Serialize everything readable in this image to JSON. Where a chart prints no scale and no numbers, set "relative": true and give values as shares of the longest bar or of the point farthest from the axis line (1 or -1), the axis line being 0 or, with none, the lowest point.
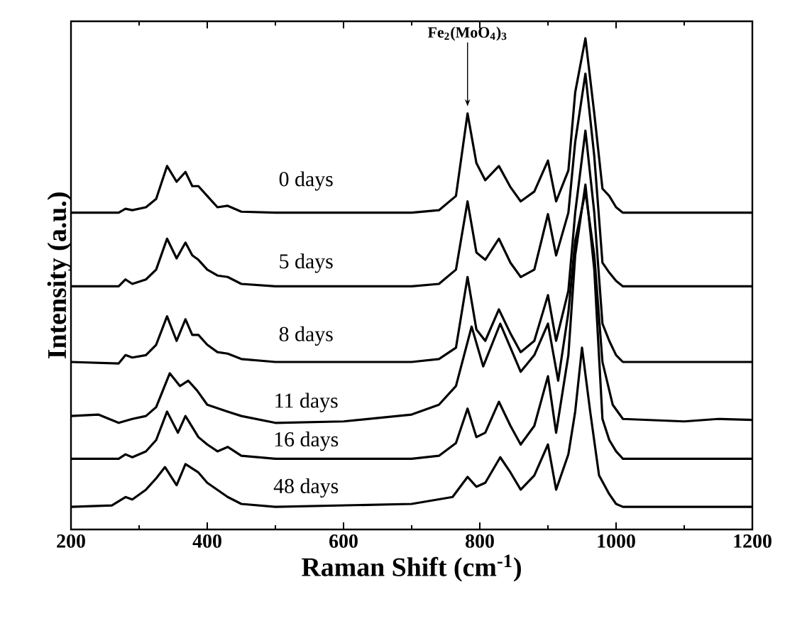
{
  "chart_data": {
    "type": "line",
    "relative": true,
    "xlabel": "Raman Shift (cm$^{-1}$)",
    "ylabel": "Intensity (a.u.)",
    "xlim": [
      200,
      1200
    ],
    "xticks": [
      200,
      400,
      600,
      800,
      1000,
      1200
    ],
    "tick_labels": "x",
    "annotations": [
      {
        "text": "Fe$_{2}$(MoO$_{4}$)$_{3}$",
        "x": 782,
        "y": 0.847
      }
    ],
    "series": [
      {
        "name": "0 days",
        "color": "#000000",
        "x": [
          200,
          270,
          280,
          290,
          310,
          325,
          341,
          355,
          368,
          378,
          387,
          400,
          415,
          430,
          450,
          500,
          700,
          740,
          765,
          782,
          795,
          808,
          828,
          845,
          860,
          880,
          900,
          912,
          930,
          940,
          955,
          968,
          980,
          990,
          1000,
          1010,
          1200
        ],
        "values": [
          0.645,
          0.645,
          0.653,
          0.65,
          0.656,
          0.673,
          0.74,
          0.708,
          0.728,
          0.699,
          0.699,
          0.679,
          0.656,
          0.659,
          0.647,
          0.645,
          0.645,
          0.65,
          0.679,
          0.847,
          0.746,
          0.711,
          0.74,
          0.697,
          0.668,
          0.688,
          0.751,
          0.668,
          0.731,
          0.89,
          1.0,
          0.847,
          0.694,
          0.679,
          0.656,
          0.645,
          0.645
        ]
      },
      {
        "name": "5 days",
        "color": "#000000",
        "x": [
          200,
          270,
          280,
          290,
          310,
          325,
          341,
          355,
          368,
          378,
          387,
          400,
          415,
          430,
          450,
          500,
          700,
          740,
          765,
          782,
          795,
          808,
          828,
          845,
          860,
          880,
          900,
          912,
          930,
          940,
          955,
          968,
          980,
          990,
          1000,
          1010,
          1200
        ],
        "values": [
          0.495,
          0.495,
          0.509,
          0.5,
          0.509,
          0.529,
          0.592,
          0.552,
          0.584,
          0.558,
          0.549,
          0.529,
          0.517,
          0.514,
          0.5,
          0.495,
          0.495,
          0.5,
          0.529,
          0.668,
          0.564,
          0.549,
          0.592,
          0.543,
          0.514,
          0.529,
          0.642,
          0.558,
          0.645,
          0.789,
          0.928,
          0.76,
          0.543,
          0.523,
          0.506,
          0.495,
          0.495
        ]
      },
      {
        "name": "8 days",
        "color": "#000000",
        "x": [
          200,
          270,
          280,
          290,
          310,
          325,
          341,
          355,
          368,
          378,
          387,
          400,
          415,
          430,
          450,
          500,
          700,
          740,
          765,
          782,
          795,
          808,
          828,
          845,
          860,
          880,
          900,
          912,
          930,
          940,
          955,
          968,
          980,
          990,
          1000,
          1010,
          1200
        ],
        "values": [
          0.341,
          0.338,
          0.355,
          0.35,
          0.355,
          0.376,
          0.434,
          0.384,
          0.428,
          0.396,
          0.396,
          0.376,
          0.361,
          0.358,
          0.347,
          0.341,
          0.341,
          0.347,
          0.37,
          0.514,
          0.407,
          0.384,
          0.448,
          0.399,
          0.361,
          0.384,
          0.477,
          0.384,
          0.486,
          0.645,
          0.812,
          0.645,
          0.419,
          0.384,
          0.355,
          0.341,
          0.341
        ]
      },
      {
        "name": "11 days",
        "color": "#000000",
        "x": [
          200,
          240,
          270,
          290,
          310,
          325,
          345,
          360,
          372,
          385,
          400,
          430,
          450,
          500,
          600,
          700,
          740,
          765,
          788,
          805,
          830,
          845,
          860,
          880,
          900,
          915,
          930,
          940,
          955,
          968,
          980,
          995,
          1010,
          1100,
          1150,
          1200
        ],
        "values": [
          0.231,
          0.234,
          0.217,
          0.225,
          0.231,
          0.249,
          0.318,
          0.292,
          0.303,
          0.283,
          0.254,
          0.24,
          0.231,
          0.217,
          0.22,
          0.234,
          0.254,
          0.292,
          0.413,
          0.332,
          0.419,
          0.37,
          0.321,
          0.355,
          0.419,
          0.303,
          0.442,
          0.587,
          0.688,
          0.558,
          0.341,
          0.254,
          0.225,
          0.22,
          0.225,
          0.223
        ]
      },
      {
        "name": "16 days",
        "color": "#000000",
        "x": [
          200,
          270,
          280,
          290,
          310,
          325,
          341,
          357,
          368,
          387,
          400,
          415,
          430,
          450,
          500,
          700,
          740,
          765,
          782,
          795,
          808,
          828,
          845,
          860,
          880,
          900,
          912,
          930,
          940,
          955,
          968,
          980,
          990,
          1000,
          1010,
          1200
        ],
        "values": [
          0.144,
          0.144,
          0.153,
          0.147,
          0.159,
          0.182,
          0.24,
          0.197,
          0.231,
          0.188,
          0.173,
          0.159,
          0.168,
          0.15,
          0.144,
          0.144,
          0.15,
          0.176,
          0.246,
          0.188,
          0.197,
          0.26,
          0.211,
          0.173,
          0.211,
          0.312,
          0.197,
          0.355,
          0.558,
          0.702,
          0.529,
          0.225,
          0.182,
          0.159,
          0.144,
          0.144
        ]
      },
      {
        "name": "48 days",
        "color": "#000000",
        "x": [
          200,
          260,
          280,
          290,
          310,
          325,
          338,
          355,
          368,
          387,
          400,
          430,
          450,
          500,
          700,
          760,
          782,
          795,
          808,
          830,
          845,
          860,
          880,
          900,
          912,
          930,
          940,
          950,
          962,
          975,
          990,
          1000,
          1010,
          1200
        ],
        "values": [
          0.046,
          0.049,
          0.066,
          0.061,
          0.081,
          0.104,
          0.127,
          0.09,
          0.133,
          0.116,
          0.095,
          0.066,
          0.052,
          0.046,
          0.052,
          0.066,
          0.107,
          0.087,
          0.095,
          0.147,
          0.116,
          0.081,
          0.11,
          0.173,
          0.081,
          0.153,
          0.24,
          0.37,
          0.24,
          0.11,
          0.072,
          0.052,
          0.046,
          0.046
        ]
      }
    ]
  }
}
